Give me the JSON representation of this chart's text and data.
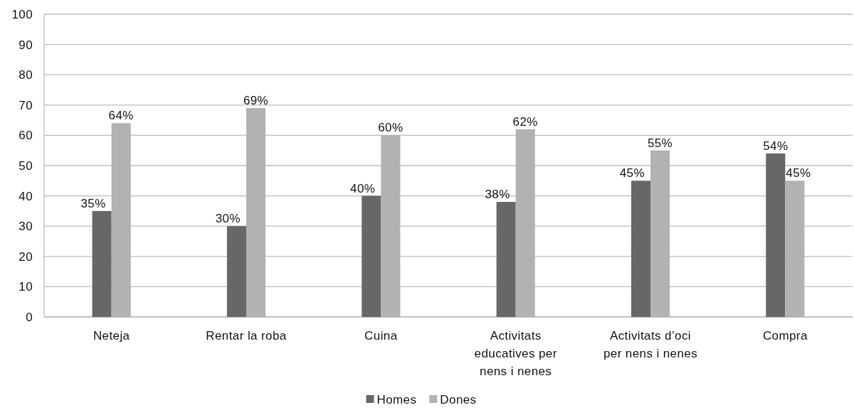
{
  "chart_data": {
    "type": "bar",
    "categories": [
      "Neteja",
      "Rentar la roba",
      "Cuina",
      "Activitats educatives per nens i nenes",
      "Activitats d’oci per nens i nenes",
      "Compra"
    ],
    "series": [
      {
        "name": "Homes",
        "color": "#666769",
        "values": [
          35,
          30,
          40,
          38,
          45,
          54
        ],
        "value_labels": [
          "35%",
          "30%",
          "40%",
          "38%",
          "45%",
          "54%"
        ]
      },
      {
        "name": "Dones",
        "color": "#b1b2b4",
        "values": [
          64,
          69,
          60,
          62,
          55,
          45
        ],
        "value_labels": [
          "64%",
          "69%",
          "60%",
          "62%",
          "55%",
          "45%"
        ]
      }
    ],
    "ylim": [
      0,
      100
    ],
    "yticks": [
      0,
      10,
      20,
      30,
      40,
      50,
      60,
      70,
      80,
      90,
      100
    ],
    "grid": "y",
    "legend": "bottom"
  }
}
